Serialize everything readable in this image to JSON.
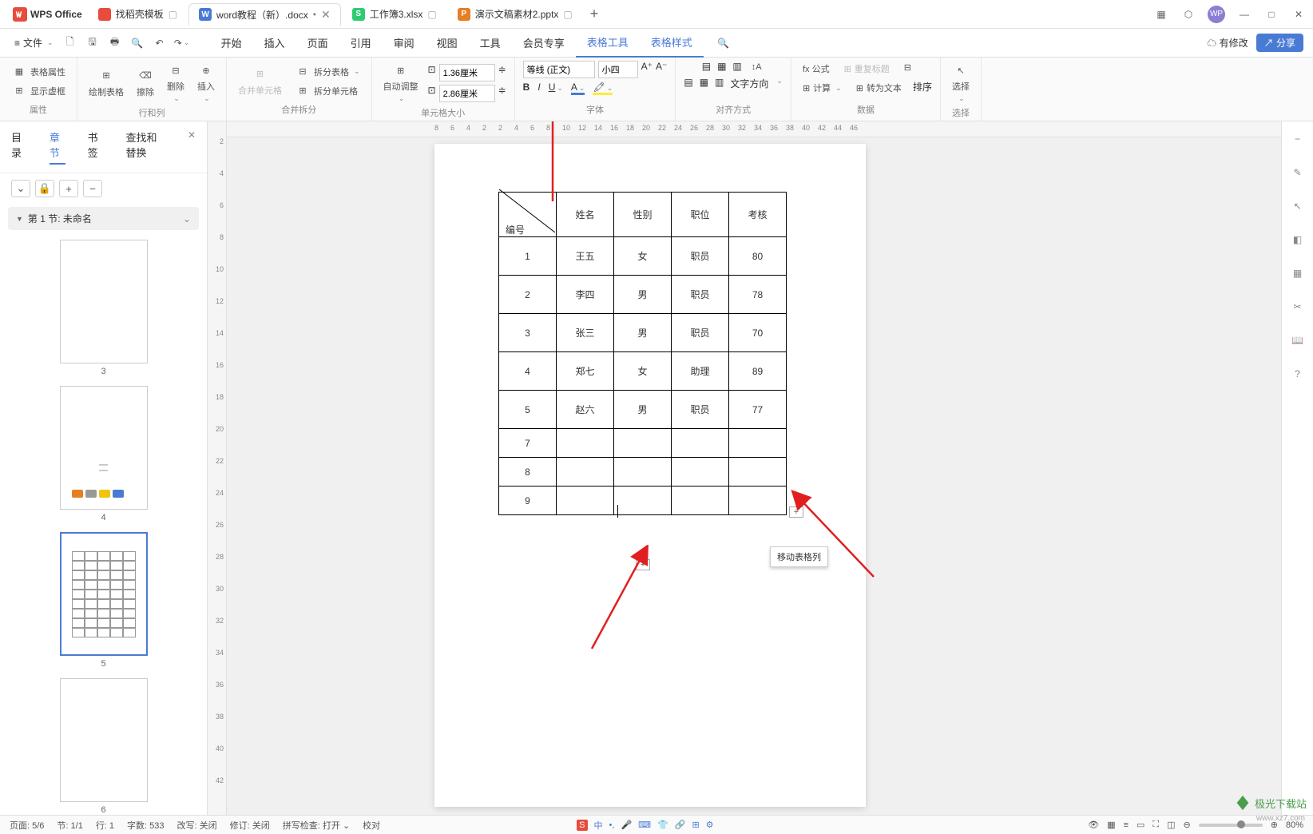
{
  "app_name": "WPS Office",
  "tabs": [
    {
      "icon_bg": "#e74c3c",
      "icon_text": "",
      "label": "找稻壳模板",
      "active": false
    },
    {
      "icon_bg": "#4a7bd4",
      "icon_text": "W",
      "label": "word教程（新）.docx",
      "active": true,
      "dot": "•"
    },
    {
      "icon_bg": "#2ecc71",
      "icon_text": "S",
      "label": "工作簿3.xlsx",
      "active": false
    },
    {
      "icon_bg": "#e67e22",
      "icon_text": "P",
      "label": "演示文稿素材2.pptx",
      "active": false
    }
  ],
  "file_menu": "文件",
  "menus": [
    "开始",
    "插入",
    "页面",
    "引用",
    "审阅",
    "视图",
    "工具",
    "会员专享",
    "表格工具",
    "表格样式"
  ],
  "menu_active_idx": 8,
  "menubar_right": {
    "modified": "有修改",
    "share": "分享"
  },
  "ribbon": {
    "g1": {
      "btn1": "表格属性",
      "btn2": "显示虚框",
      "label": "属性"
    },
    "g2": {
      "btn1": "绘制表格",
      "btn2": "擦除",
      "btn3": "删除",
      "btn4": "插入",
      "label": "行和列"
    },
    "g3": {
      "btn1": "合并单元格",
      "btn2": "拆分表格",
      "btn3": "拆分单元格",
      "label": "合并拆分"
    },
    "g4": {
      "btn1": "自动调整",
      "w": "1.36厘米",
      "h": "2.86厘米",
      "label": "单元格大小"
    },
    "g5": {
      "font": "等线 (正文)",
      "size": "小四",
      "label": "字体"
    },
    "g6": {
      "btn": "文字方向",
      "label": "对齐方式"
    },
    "g7": {
      "btn1": "fx 公式",
      "btn2": "重复标题",
      "btn3": "计算",
      "btn4": "转为文本",
      "btn5": "排序",
      "label": "数据"
    },
    "g8": {
      "btn": "选择",
      "label": "选择"
    }
  },
  "nav": {
    "tabs": [
      "目录",
      "章节",
      "书签",
      "查找和替换"
    ],
    "active_idx": 1,
    "section": "第 1 节: 未命名",
    "thumbs": [
      {
        "num": "3",
        "content": ""
      },
      {
        "num": "4",
        "content": "diagram"
      },
      {
        "num": "5",
        "content": "table",
        "selected": true
      },
      {
        "num": "6",
        "content": ""
      }
    ]
  },
  "ruler_h": [
    8,
    6,
    4,
    2,
    2,
    4,
    6,
    8,
    10,
    12,
    14,
    16,
    18,
    20,
    22,
    24,
    26,
    28,
    30,
    32,
    34,
    36,
    38,
    40,
    42,
    44,
    46
  ],
  "ruler_v": [
    2,
    4,
    6,
    8,
    10,
    12,
    14,
    16,
    18,
    20,
    22,
    24,
    26,
    28,
    30,
    32,
    34,
    36,
    38,
    40,
    42
  ],
  "table": {
    "headers": [
      "编号",
      "姓名",
      "性别",
      "职位",
      "考核"
    ],
    "rows": [
      [
        "1",
        "王五",
        "女",
        "职员",
        "80"
      ],
      [
        "2",
        "李四",
        "男",
        "职员",
        "78"
      ],
      [
        "3",
        "张三",
        "男",
        "职员",
        "70"
      ],
      [
        "4",
        "郑七",
        "女",
        "助理",
        "89"
      ],
      [
        "5",
        "赵六",
        "男",
        "职员",
        "77"
      ],
      [
        "7",
        "",
        "",
        "",
        ""
      ],
      [
        "8",
        "",
        "",
        "",
        ""
      ],
      [
        "9",
        "",
        "",
        "",
        ""
      ]
    ]
  },
  "tooltip": "移动表格列",
  "status": {
    "page": "页面: 5/6",
    "section": "节: 1/1",
    "row": "行: 1",
    "words": "字数: 533",
    "change": "改写: 关闭",
    "revision": "修订: 关闭",
    "spell": "拼写检查: 打开",
    "proof": "校对",
    "zoom": "80%"
  },
  "watermark": {
    "text": "极光下载站",
    "url": "www.xz7.com"
  },
  "arrows": {
    "color": "#e02020"
  }
}
